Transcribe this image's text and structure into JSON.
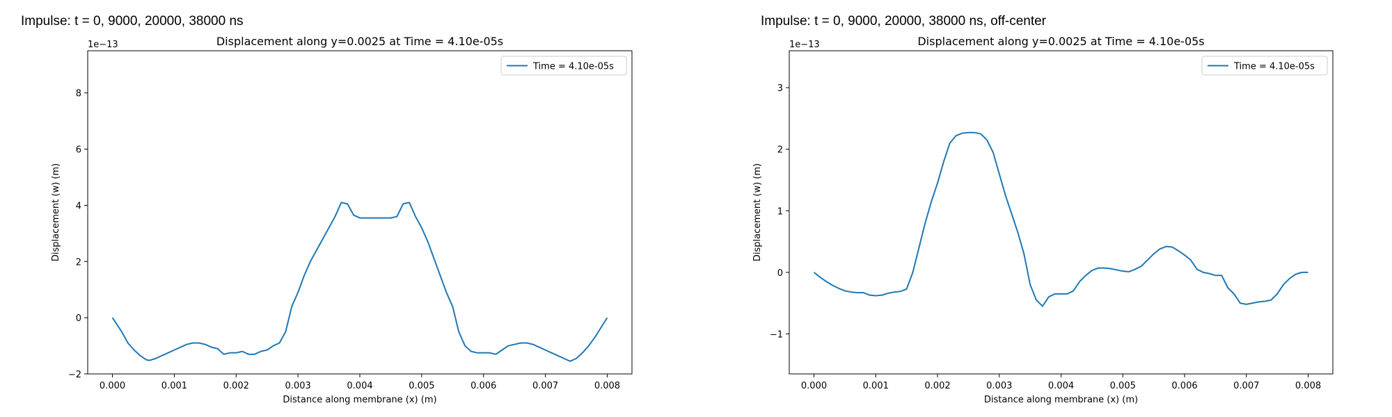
{
  "panels": [
    {
      "suptitle": "Impulse: t = 0, 9000, 20000, 38000 ns"
    },
    {
      "suptitle": "Impulse: t = 0, 9000, 20000, 38000 ns, off-center"
    }
  ],
  "chart_data": [
    {
      "type": "line",
      "title": "Displacement along y=0.0025 at Time = 4.10e-05s",
      "xlabel": "Distance along membrane (x) (m)",
      "ylabel": "Displacement (w) (m)",
      "y_scale_label": "1e−13",
      "xlim": [
        -0.0004,
        0.0084
      ],
      "ylim": [
        -2.0,
        9.5
      ],
      "xticks": [
        0.0,
        0.001,
        0.002,
        0.003,
        0.004,
        0.005,
        0.006,
        0.007,
        0.008
      ],
      "xtick_labels": [
        "0.000",
        "0.001",
        "0.002",
        "0.003",
        "0.004",
        "0.005",
        "0.006",
        "0.007",
        "0.008"
      ],
      "yticks": [
        -2,
        0,
        2,
        4,
        6,
        8
      ],
      "ytick_labels": [
        "−2",
        "0",
        "2",
        "4",
        "6",
        "8"
      ],
      "legend_position": "top-right",
      "grid": false,
      "color": "#1f77b4",
      "series": [
        {
          "name": "Time = 4.10e-05s",
          "x": [
            0.0,
            0.00015,
            0.00025,
            0.00035,
            0.00045,
            0.00055,
            0.0006,
            0.0007,
            0.0008,
            0.0009,
            0.001,
            0.0011,
            0.0012,
            0.0013,
            0.0014,
            0.0015,
            0.0016,
            0.0017,
            0.0018,
            0.0019,
            0.002,
            0.0021,
            0.0022,
            0.0023,
            0.0024,
            0.0025,
            0.0026,
            0.0027,
            0.0028,
            0.0029,
            0.003,
            0.0031,
            0.0032,
            0.0033,
            0.0034,
            0.0035,
            0.0036,
            0.0037,
            0.0038,
            0.0039,
            0.004,
            0.0041,
            0.0042,
            0.0043,
            0.0044,
            0.0045,
            0.0046,
            0.0047,
            0.0048,
            0.0049,
            0.005,
            0.0051,
            0.0052,
            0.0053,
            0.0054,
            0.0055,
            0.0056,
            0.0057,
            0.0058,
            0.0059,
            0.006,
            0.0061,
            0.0062,
            0.0063,
            0.0064,
            0.0065,
            0.0066,
            0.0067,
            0.0068,
            0.0069,
            0.007,
            0.0071,
            0.0072,
            0.0073,
            0.0074,
            0.0075,
            0.0076,
            0.0077,
            0.0078,
            0.0079,
            0.008
          ],
          "y": [
            0.0,
            -0.5,
            -0.9,
            -1.15,
            -1.35,
            -1.5,
            -1.52,
            -1.45,
            -1.35,
            -1.25,
            -1.15,
            -1.05,
            -0.95,
            -0.9,
            -0.9,
            -0.95,
            -1.05,
            -1.1,
            -1.3,
            -1.25,
            -1.25,
            -1.2,
            -1.3,
            -1.3,
            -1.2,
            -1.15,
            -1.0,
            -0.9,
            -0.5,
            0.4,
            0.9,
            1.5,
            2.0,
            2.4,
            2.8,
            3.2,
            3.6,
            4.1,
            4.05,
            3.65,
            3.55,
            3.55,
            3.55,
            3.55,
            3.55,
            3.55,
            3.6,
            4.05,
            4.1,
            3.6,
            3.2,
            2.7,
            2.1,
            1.5,
            0.9,
            0.4,
            -0.5,
            -1.0,
            -1.2,
            -1.25,
            -1.25,
            -1.25,
            -1.3,
            -1.15,
            -1.0,
            -0.95,
            -0.9,
            -0.9,
            -0.95,
            -1.05,
            -1.15,
            -1.25,
            -1.35,
            -1.45,
            -1.55,
            -1.45,
            -1.25,
            -1.0,
            -0.7,
            -0.35,
            0.0
          ]
        }
      ]
    },
    {
      "type": "line",
      "title": "Displacement along y=0.0025 at Time = 4.10e-05s",
      "xlabel": "Distance along membrane (x) (m)",
      "ylabel": "Displacement (w) (m)",
      "y_scale_label": "1e−13",
      "xlim": [
        -0.0004,
        0.0084
      ],
      "ylim": [
        -1.65,
        3.6
      ],
      "xticks": [
        0.0,
        0.001,
        0.002,
        0.003,
        0.004,
        0.005,
        0.006,
        0.007,
        0.008
      ],
      "xtick_labels": [
        "0.000",
        "0.001",
        "0.002",
        "0.003",
        "0.004",
        "0.005",
        "0.006",
        "0.007",
        "0.008"
      ],
      "yticks": [
        -1,
        0,
        1,
        2,
        3
      ],
      "ytick_labels": [
        "−1",
        "0",
        "1",
        "2",
        "3"
      ],
      "legend_position": "top-right",
      "grid": false,
      "color": "#1f77b4",
      "series": [
        {
          "name": "Time = 4.10e-05s",
          "x": [
            0.0,
            0.0001,
            0.0002,
            0.0003,
            0.0004,
            0.0005,
            0.0006,
            0.0007,
            0.0008,
            0.0009,
            0.001,
            0.0011,
            0.0012,
            0.0013,
            0.0014,
            0.0015,
            0.0016,
            0.0017,
            0.0018,
            0.0019,
            0.002,
            0.0021,
            0.0022,
            0.0023,
            0.0024,
            0.0025,
            0.0026,
            0.0027,
            0.0028,
            0.0029,
            0.003,
            0.0031,
            0.0032,
            0.0033,
            0.0034,
            0.0035,
            0.0036,
            0.0037,
            0.0038,
            0.0039,
            0.004,
            0.0041,
            0.0042,
            0.0043,
            0.0044,
            0.0045,
            0.0046,
            0.0047,
            0.0048,
            0.0049,
            0.005,
            0.0051,
            0.0052,
            0.0053,
            0.0054,
            0.0055,
            0.0056,
            0.0057,
            0.0058,
            0.0059,
            0.006,
            0.0061,
            0.0062,
            0.0063,
            0.0064,
            0.0065,
            0.0066,
            0.0067,
            0.0068,
            0.0069,
            0.007,
            0.0071,
            0.0072,
            0.0073,
            0.0074,
            0.0075,
            0.0076,
            0.0077,
            0.0078,
            0.0079,
            0.008
          ],
          "y": [
            0.0,
            -0.08,
            -0.15,
            -0.21,
            -0.26,
            -0.3,
            -0.32,
            -0.33,
            -0.33,
            -0.37,
            -0.38,
            -0.37,
            -0.34,
            -0.32,
            -0.31,
            -0.27,
            0.0,
            0.4,
            0.8,
            1.15,
            1.45,
            1.8,
            2.1,
            2.22,
            2.26,
            2.27,
            2.27,
            2.25,
            2.15,
            1.95,
            1.6,
            1.25,
            0.95,
            0.65,
            0.3,
            -0.2,
            -0.45,
            -0.55,
            -0.4,
            -0.35,
            -0.35,
            -0.35,
            -0.3,
            -0.15,
            -0.05,
            0.03,
            0.07,
            0.07,
            0.06,
            0.04,
            0.02,
            0.01,
            0.05,
            0.1,
            0.2,
            0.3,
            0.38,
            0.42,
            0.41,
            0.35,
            0.28,
            0.2,
            0.05,
            0.0,
            -0.02,
            -0.05,
            -0.05,
            -0.25,
            -0.35,
            -0.5,
            -0.52,
            -0.5,
            -0.48,
            -0.47,
            -0.45,
            -0.35,
            -0.2,
            -0.1,
            -0.03,
            0.0,
            0.0
          ]
        }
      ]
    }
  ]
}
